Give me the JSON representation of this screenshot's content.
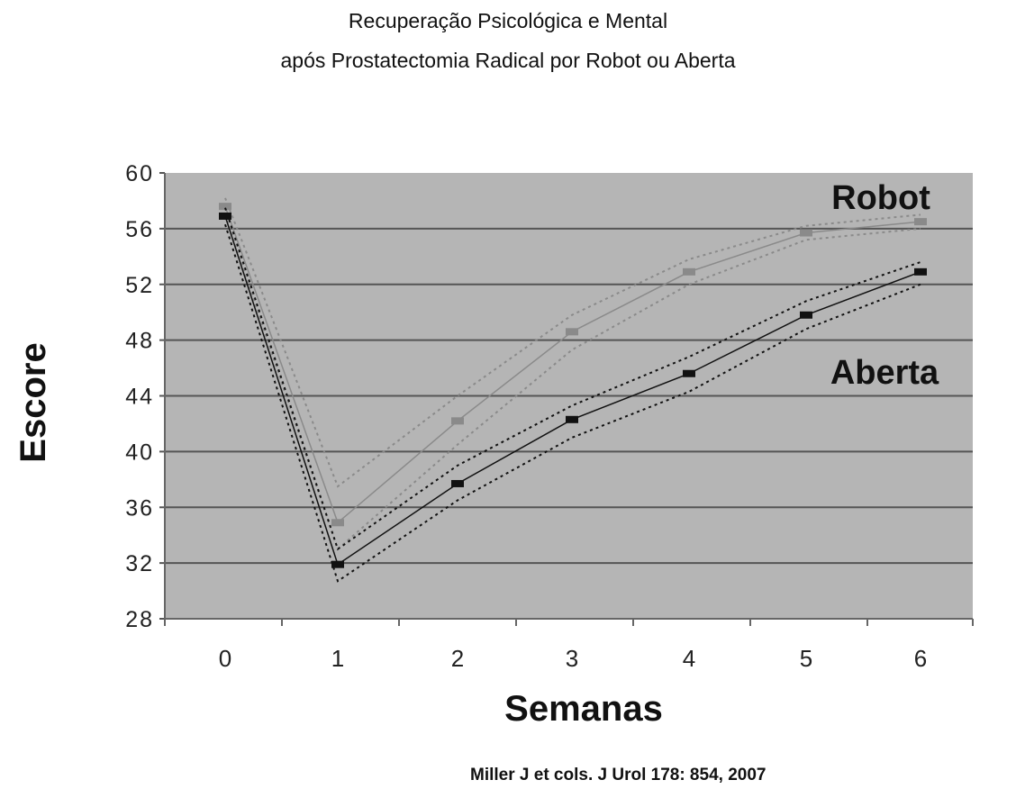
{
  "chart_data": {
    "type": "line",
    "title": [
      "Recuperação Psicológica e Mental",
      "após Prostatectomia Radical por Robot ou Aberta"
    ],
    "xlabel": "Semanas",
    "ylabel": "Escore",
    "x": [
      0,
      1,
      2,
      3,
      4,
      5,
      6
    ],
    "xticks": [
      "0",
      "1",
      "2",
      "3",
      "4",
      "5",
      "6"
    ],
    "yticks": [
      "28",
      "32",
      "36",
      "40",
      "44",
      "48",
      "52",
      "56",
      "60"
    ],
    "ylim": [
      28,
      60
    ],
    "grid": true,
    "series": [
      {
        "name": "Robot",
        "color": "#8a8a8a",
        "values": [
          57.6,
          34.9,
          42.2,
          48.6,
          52.9,
          55.7,
          56.5
        ],
        "upper": [
          58.2,
          37.5,
          44.0,
          49.8,
          53.8,
          56.2,
          57.0
        ],
        "lower": [
          57.0,
          33.0,
          40.5,
          47.3,
          52.0,
          55.2,
          56.0
        ]
      },
      {
        "name": "Aberta",
        "color": "#111111",
        "values": [
          56.9,
          31.9,
          37.7,
          42.3,
          45.6,
          49.8,
          52.9
        ],
        "upper": [
          57.5,
          33.0,
          39.0,
          43.3,
          46.8,
          50.8,
          53.6
        ],
        "lower": [
          56.3,
          30.7,
          36.5,
          41.0,
          44.3,
          48.8,
          52.0
        ]
      }
    ],
    "plot_background": "#b5b5b5"
  },
  "citation": "Miller J et cols. J Urol  178: 854, 2007"
}
